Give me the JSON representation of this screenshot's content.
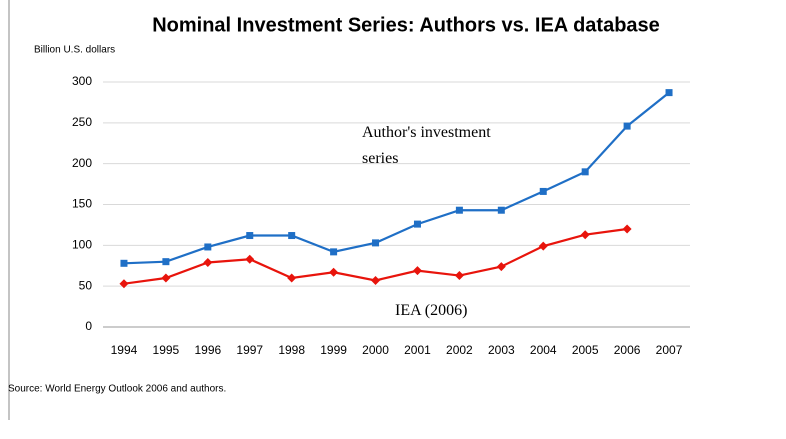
{
  "chart_data": {
    "type": "line",
    "title": "Nominal Investment Series: Authors vs. IEA database",
    "y_axis_label": "Billion U.S. dollars",
    "source": "Source: World Energy Outlook 2006 and authors.",
    "annotations": [
      "Author's investment series",
      "IEA (2006)"
    ],
    "categories": [
      "1994",
      "1995",
      "1996",
      "1997",
      "1998",
      "1999",
      "2000",
      "2001",
      "2002",
      "2003",
      "2004",
      "2005",
      "2006",
      "2007"
    ],
    "series": [
      {
        "name": "Author's investment series",
        "color": "#1f6fc6",
        "marker": "square",
        "values": [
          78,
          80,
          98,
          112,
          112,
          92,
          103,
          126,
          143,
          143,
          166,
          190,
          246,
          287
        ]
      },
      {
        "name": "IEA (2006)",
        "color": "#e8140c",
        "marker": "diamond",
        "values": [
          53,
          60,
          79,
          83,
          60,
          67,
          57,
          69,
          63,
          74,
          99,
          113,
          120,
          null
        ]
      }
    ],
    "ylim": [
      0,
      300
    ],
    "yticks": [
      0,
      50,
      100,
      150,
      200,
      250,
      300
    ],
    "grid": true
  }
}
